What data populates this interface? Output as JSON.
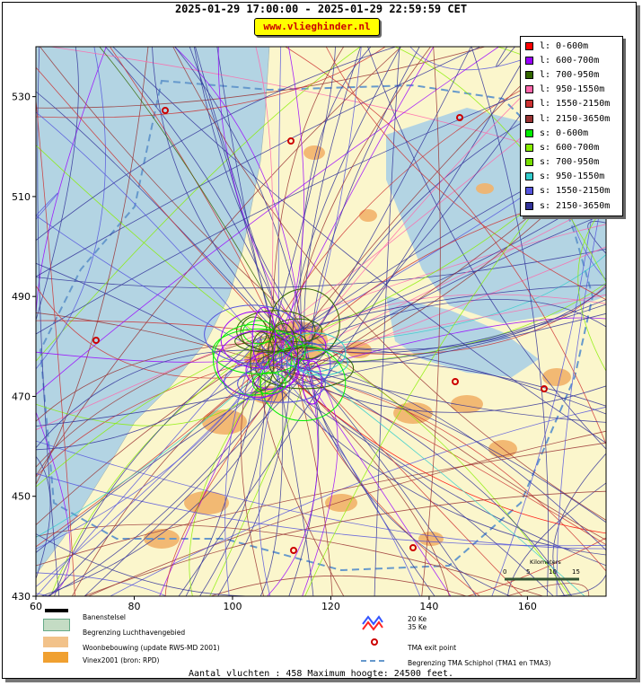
{
  "header": {
    "title": "2025-01-29 17:00:00 - 2025-01-29 22:59:59 CET",
    "site_label": "www.vlieghinder.nl"
  },
  "map": {
    "x_ticks": [
      "60",
      "80",
      "100",
      "120",
      "140",
      "160"
    ],
    "y_ticks": [
      "530",
      "510",
      "490",
      "470",
      "450",
      "430"
    ],
    "x_range": [
      60,
      176
    ],
    "y_range": [
      430,
      540
    ],
    "colors": {
      "sea": "#b3d4e3",
      "land": "#fbf6cc",
      "urban": "#f2b36a"
    },
    "scale_label": "Kilometers",
    "scale_ticks": [
      "0",
      "5",
      "10",
      "15"
    ]
  },
  "legend": [
    {
      "label": "l: 0-600m",
      "color": "#ff0000"
    },
    {
      "label": "l: 600-700m",
      "color": "#9900ff"
    },
    {
      "label": "l: 700-950m",
      "color": "#336600"
    },
    {
      "label": "l: 950-1550m",
      "color": "#ff66aa"
    },
    {
      "label": "l: 1550-2150m",
      "color": "#cc3333"
    },
    {
      "label": "l: 2150-3650m",
      "color": "#993333"
    },
    {
      "label": "s: 0-600m",
      "color": "#00ee00"
    },
    {
      "label": "s: 600-700m",
      "color": "#88ee00"
    },
    {
      "label": "s: 700-950m",
      "color": "#77dd00"
    },
    {
      "label": "s: 950-1550m",
      "color": "#33cccc"
    },
    {
      "label": "s: 1550-2150m",
      "color": "#5555dd"
    },
    {
      "label": "s: 2150-3650m",
      "color": "#333399"
    }
  ],
  "bottom_legend": {
    "runways": "Banenstelsel",
    "airport_boundary": "Begrenzing Luchthavengebied",
    "housing": "Woonbebouwing (update RWS-MD 2001)",
    "vinex": "Vinex2001 (bron: RPD)",
    "ke20": "20 Ke",
    "ke35": "35 Ke",
    "tma_exit": "TMA exit point",
    "tma_boundary": "Begrenzing TMA Schiphol  (TMA1 en TMA3)"
  },
  "footer": {
    "text": "Aantal vluchten : 458 Maximum hoogte: 24500 feet."
  }
}
